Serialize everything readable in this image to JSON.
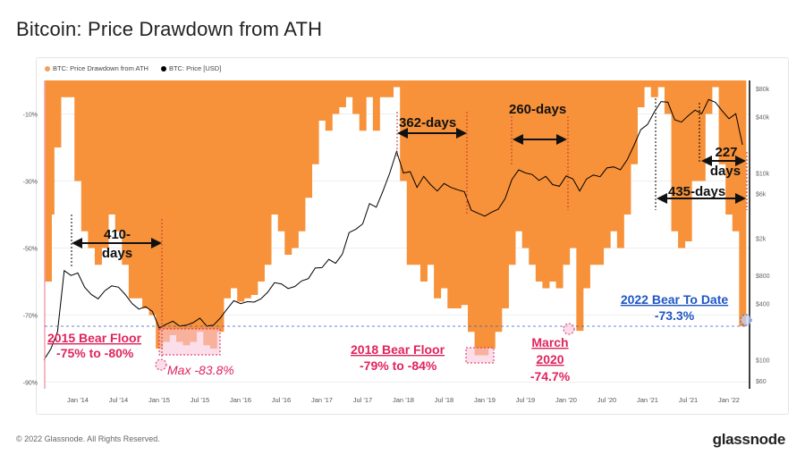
{
  "title": "Bitcoin: Price Drawdown from ATH",
  "footer": {
    "copyright": "© 2022 Glassnode. All Rights Reserved.",
    "logo": "glassnode"
  },
  "colors": {
    "drawdown": "#f7923a",
    "price": "#000000",
    "bear_floor_line": "#3a5fbf",
    "annotation_pink": "#e0245e",
    "annotation_blue": "#1f56c4",
    "floor_box": "#f8c8dc"
  },
  "chart_data": {
    "type": "area",
    "legend": {
      "position": "top-left",
      "entries": [
        "BTC: Price Drawdown from ATH",
        "BTC: Price [USD]"
      ]
    },
    "x_ticks": [
      "Jan '14",
      "Jul '14",
      "Jan '15",
      "Jul '15",
      "Jan '16",
      "Jul '16",
      "Jan '17",
      "Jul '17",
      "Jan '18",
      "Jul '18",
      "Jan '19",
      "Jul '19",
      "Jan '20",
      "Jul '20",
      "Jan '21",
      "Jul '21",
      "Jan '22"
    ],
    "y_left": {
      "ticks": [
        "-10%",
        "-30%",
        "-50%",
        "-70%",
        "-90%"
      ],
      "range": [
        -92,
        0
      ],
      "scale": "linear"
    },
    "y_right": {
      "ticks": [
        "$80k",
        "$40k",
        "$10k",
        "$6k",
        "$2k",
        "$800",
        "$400",
        "$100",
        "$60"
      ],
      "range": [
        60,
        80000
      ],
      "scale": "log"
    },
    "grid": true,
    "dates": [
      "2013-08",
      "2013-09",
      "2013-10",
      "2013-11",
      "2013-12",
      "2014-01",
      "2014-02",
      "2014-03",
      "2014-04",
      "2014-05",
      "2014-06",
      "2014-07",
      "2014-08",
      "2014-09",
      "2014-10",
      "2014-11",
      "2014-12",
      "2015-01",
      "2015-02",
      "2015-03",
      "2015-04",
      "2015-05",
      "2015-06",
      "2015-07",
      "2015-08",
      "2015-09",
      "2015-10",
      "2015-11",
      "2015-12",
      "2016-01",
      "2016-02",
      "2016-03",
      "2016-04",
      "2016-05",
      "2016-06",
      "2016-07",
      "2016-08",
      "2016-09",
      "2016-10",
      "2016-11",
      "2016-12",
      "2017-01",
      "2017-02",
      "2017-03",
      "2017-04",
      "2017-05",
      "2017-06",
      "2017-07",
      "2017-08",
      "2017-09",
      "2017-10",
      "2017-11",
      "2017-12",
      "2018-01",
      "2018-02",
      "2018-03",
      "2018-04",
      "2018-05",
      "2018-06",
      "2018-07",
      "2018-08",
      "2018-09",
      "2018-10",
      "2018-11",
      "2018-12",
      "2019-01",
      "2019-02",
      "2019-03",
      "2019-04",
      "2019-05",
      "2019-06",
      "2019-07",
      "2019-08",
      "2019-09",
      "2019-10",
      "2019-11",
      "2019-12",
      "2020-01",
      "2020-02",
      "2020-03",
      "2020-04",
      "2020-05",
      "2020-06",
      "2020-07",
      "2020-08",
      "2020-09",
      "2020-10",
      "2020-11",
      "2020-12",
      "2021-01",
      "2021-02",
      "2021-03",
      "2021-04",
      "2021-05",
      "2021-06",
      "2021-07",
      "2021-08",
      "2021-09",
      "2021-10",
      "2021-11",
      "2021-12",
      "2022-01",
      "2022-02",
      "2022-03"
    ],
    "series": [
      {
        "name": "BTC: Price Drawdown from ATH",
        "unit": "%",
        "values": [
          -60,
          -40,
          -20,
          -5,
          -5,
          -30,
          -45,
          -50,
          -55,
          -50,
          -40,
          -45,
          -55,
          -65,
          -65,
          -68,
          -70,
          -80,
          -78,
          -76,
          -78,
          -79,
          -78,
          -75,
          -79,
          -80,
          -75,
          -65,
          -62,
          -66,
          -65,
          -64,
          -60,
          -55,
          -40,
          -45,
          -52,
          -50,
          -45,
          -35,
          -25,
          -12,
          -15,
          -10,
          -8,
          -5,
          -10,
          -15,
          -5,
          -15,
          -5,
          -5,
          -2,
          -30,
          -55,
          -55,
          -60,
          -55,
          -65,
          -62,
          -68,
          -68,
          -67,
          -75,
          -82,
          -82,
          -80,
          -75,
          -68,
          -55,
          -45,
          -50,
          -55,
          -60,
          -62,
          -60,
          -62,
          -55,
          -50,
          -74.7,
          -62,
          -55,
          -55,
          -50,
          -45,
          -50,
          -40,
          -25,
          -8,
          -2,
          -5,
          -2,
          -10,
          -45,
          -50,
          -48,
          -30,
          -30,
          -10,
          -2,
          -25,
          -40,
          -45,
          -73.3
        ]
      },
      {
        "name": "BTC: Price [USD]",
        "unit": "USD",
        "values": [
          100,
          130,
          200,
          900,
          800,
          850,
          600,
          500,
          450,
          550,
          620,
          600,
          500,
          400,
          350,
          370,
          330,
          220,
          240,
          260,
          230,
          235,
          250,
          280,
          230,
          235,
          280,
          350,
          430,
          400,
          420,
          415,
          450,
          530,
          670,
          650,
          580,
          610,
          700,
          740,
          960,
          970,
          1190,
          1080,
          1350,
          2300,
          2500,
          2850,
          4700,
          4300,
          6400,
          10000,
          17000,
          10000,
          10300,
          7000,
          9200,
          7500,
          6400,
          7700,
          7000,
          6600,
          6300,
          4000,
          3700,
          3450,
          3800,
          4100,
          5300,
          8500,
          10800,
          10000,
          9600,
          8300,
          9200,
          7500,
          7200,
          9300,
          8600,
          6400,
          8600,
          9500,
          9100,
          11300,
          11600,
          10800,
          13800,
          19700,
          29000,
          33000,
          45000,
          58000,
          57000,
          37000,
          35000,
          41000,
          47000,
          43000,
          61000,
          57000,
          46000,
          38000,
          43000,
          20000
        ]
      }
    ],
    "reference_line": {
      "value": -73.3
    },
    "annotations": {
      "a410": {
        "line1": "410-",
        "line2": "days"
      },
      "a362": "362-days",
      "a260": "260-days",
      "a227": {
        "line1": "227",
        "line2": "days"
      },
      "a435": "435-days",
      "floor2015": {
        "title": "2015 Bear Floor",
        "range": "-75% to -80%",
        "max": "Max -83.8%"
      },
      "floor2018": {
        "title": "2018 Bear Floor",
        "range": "-79% to -84%"
      },
      "march2020": {
        "line1": "March",
        "line2": "2020",
        "value": "-74.7%"
      },
      "bear2022": {
        "title": "2022 Bear To Date",
        "value": "-73.3%"
      }
    }
  }
}
